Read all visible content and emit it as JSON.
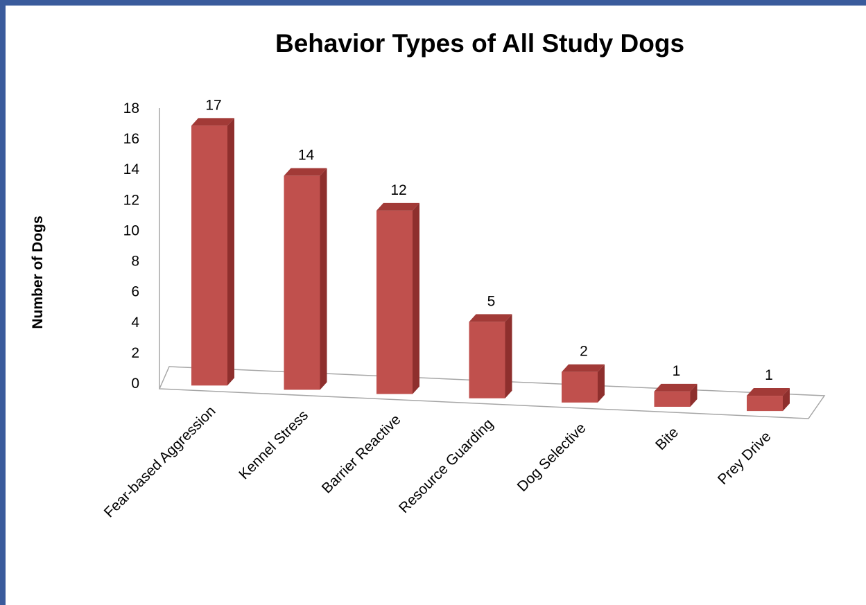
{
  "chart_data": {
    "type": "bar",
    "title": "Behavior Types of All Study Dogs",
    "xlabel": "",
    "ylabel": "Number of Dogs",
    "categories": [
      "Fear-based Aggression",
      "Kennel Stress",
      "Barrier Reactive",
      "Resource Guarding",
      "Dog Selective",
      "Bite",
      "Prey Drive"
    ],
    "values": [
      17,
      14,
      12,
      5,
      2,
      1,
      1
    ],
    "ylim": [
      0,
      18
    ],
    "yticks": [
      0,
      2,
      4,
      6,
      8,
      10,
      12,
      14,
      16,
      18
    ],
    "grid": false,
    "legend": "none",
    "style": "3d-column",
    "colors": {
      "bar_front": "#c0504d",
      "bar_side": "#8e2f2d",
      "bar_top": "#a23a37",
      "frame_border": "#3a5b9c",
      "axis": "#a6a6a6"
    }
  }
}
